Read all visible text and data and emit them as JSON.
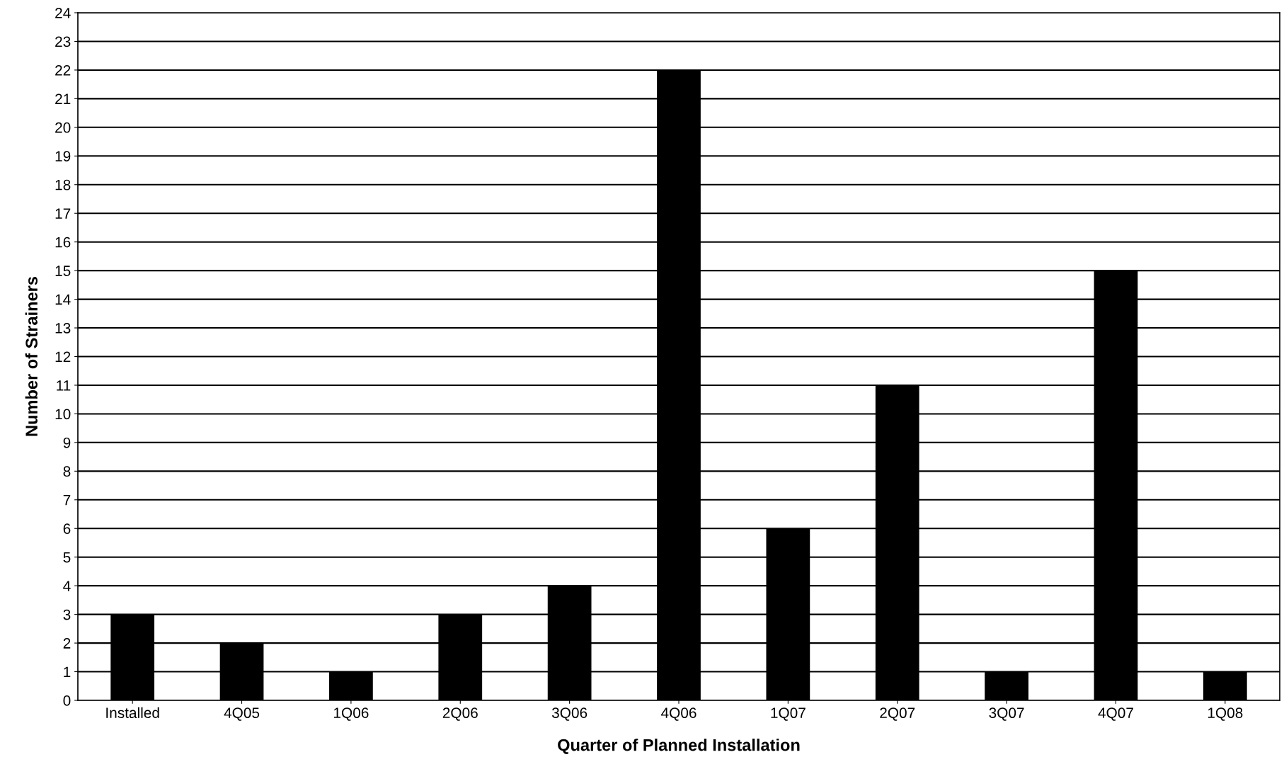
{
  "chart_data": {
    "type": "bar",
    "xlabel": "Quarter of Planned Installation",
    "ylabel": "Number of Strainers",
    "categories": [
      "Installed",
      "4Q05",
      "1Q06",
      "2Q06",
      "3Q06",
      "4Q06",
      "1Q07",
      "2Q07",
      "3Q07",
      "4Q07",
      "1Q08"
    ],
    "values": [
      3,
      2,
      1,
      3,
      4,
      22,
      6,
      11,
      1,
      15,
      1
    ],
    "color": "#000000",
    "ylim": [
      0,
      24
    ],
    "yticks": [
      0,
      1,
      2,
      3,
      4,
      5,
      6,
      7,
      8,
      9,
      10,
      11,
      12,
      13,
      14,
      15,
      16,
      17,
      18,
      19,
      20,
      21,
      22,
      23,
      24
    ],
    "grid": "y",
    "legend": false
  }
}
